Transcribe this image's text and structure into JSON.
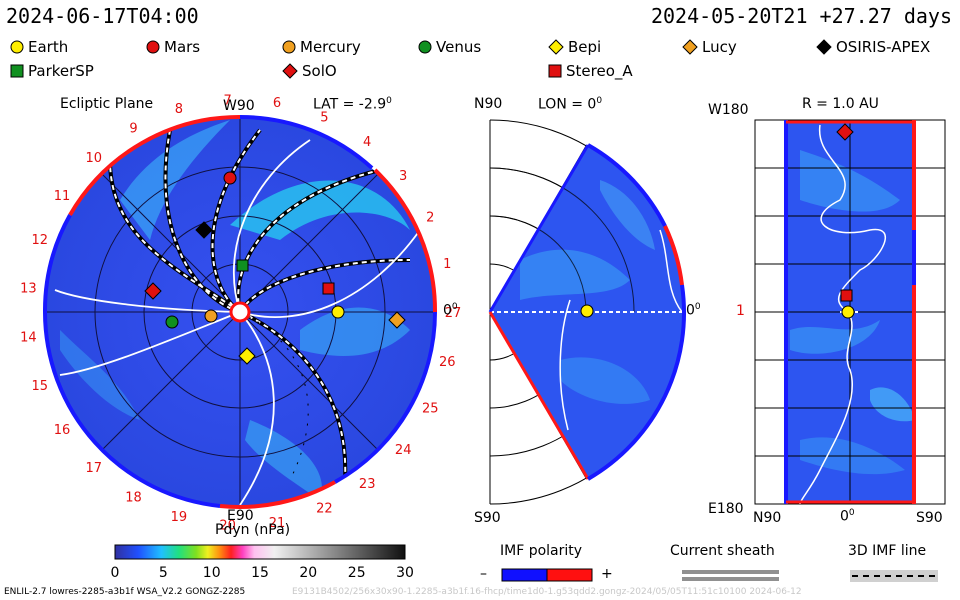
{
  "header": {
    "timestamp": "2024-06-17T04:00",
    "run_label": "2024-05-20T21 +27.27 days"
  },
  "legend": [
    {
      "label": "Earth",
      "shape": "circle",
      "color": "#ffee00"
    },
    {
      "label": "Mars",
      "shape": "circle",
      "color": "#e01010"
    },
    {
      "label": "Mercury",
      "shape": "circle",
      "color": "#f0a020"
    },
    {
      "label": "Venus",
      "shape": "circle",
      "color": "#109020"
    },
    {
      "label": "Bepi",
      "shape": "diamond",
      "color": "#ffee00"
    },
    {
      "label": "Lucy",
      "shape": "diamond",
      "color": "#f0a020"
    },
    {
      "label": "OSIRIS-APEX",
      "shape": "diamond",
      "color": "#000000"
    },
    {
      "label": "ParkerSP",
      "shape": "square",
      "color": "#109020"
    },
    {
      "label": "SolO",
      "shape": "diamond",
      "color": "#e01010"
    },
    {
      "label": "Stereo_A",
      "shape": "square",
      "color": "#e01010"
    }
  ],
  "ecliptic": {
    "title": "Ecliptic Plane",
    "top_label": "W90",
    "bottom_label": "E90",
    "right_label": "0",
    "lat_label": "LAT = -2.9",
    "deg_sup": "0",
    "carrington_ticks": [
      "20",
      "21",
      "22",
      "23",
      "24",
      "25",
      "26",
      "27",
      "1",
      "2",
      "3",
      "4",
      "5",
      "6",
      "7",
      "8",
      "9",
      "10",
      "11",
      "12",
      "13",
      "14",
      "15",
      "16",
      "17",
      "18",
      "19"
    ]
  },
  "meridional": {
    "top_label": "N90",
    "bottom_label": "S90",
    "lon_label": "LON = 0",
    "right_label": "0",
    "deg_sup": "0"
  },
  "radial": {
    "r_label": "R = 1.0 AU",
    "top_left": "W180",
    "mid_left": "1",
    "bottom_left": "E180",
    "bottom_n": "N90",
    "bottom_mid": "0",
    "bottom_s": "S90",
    "deg_sup": "0"
  },
  "colorbar": {
    "title": "Pdyn (nPa)",
    "ticks": [
      "0",
      "5",
      "10",
      "15",
      "20",
      "25",
      "30"
    ]
  },
  "imf": {
    "title": "IMF polarity",
    "minus": "–",
    "plus": "+",
    "neg_color": "#1010ff",
    "pos_color": "#ff1010"
  },
  "sheath": {
    "title": "Current sheath"
  },
  "imf_line": {
    "title": "3D IMF line"
  },
  "footer": {
    "left": "ENLIL-2.7 lowres-2285-a3b1f WSA_V2.2 GONGZ-2285",
    "right_faint": "E9131B4502/256x30x90-1.2285-a3b1f.16-fhcp/time1d0-1.g53qdd2.gongz-2024/05/05T11:51c10100    2024-06-12"
  },
  "colors": {
    "accent_red": "#e01010",
    "field_blue": "#2d5bf0",
    "disk_blue": "#2a4fe8"
  }
}
